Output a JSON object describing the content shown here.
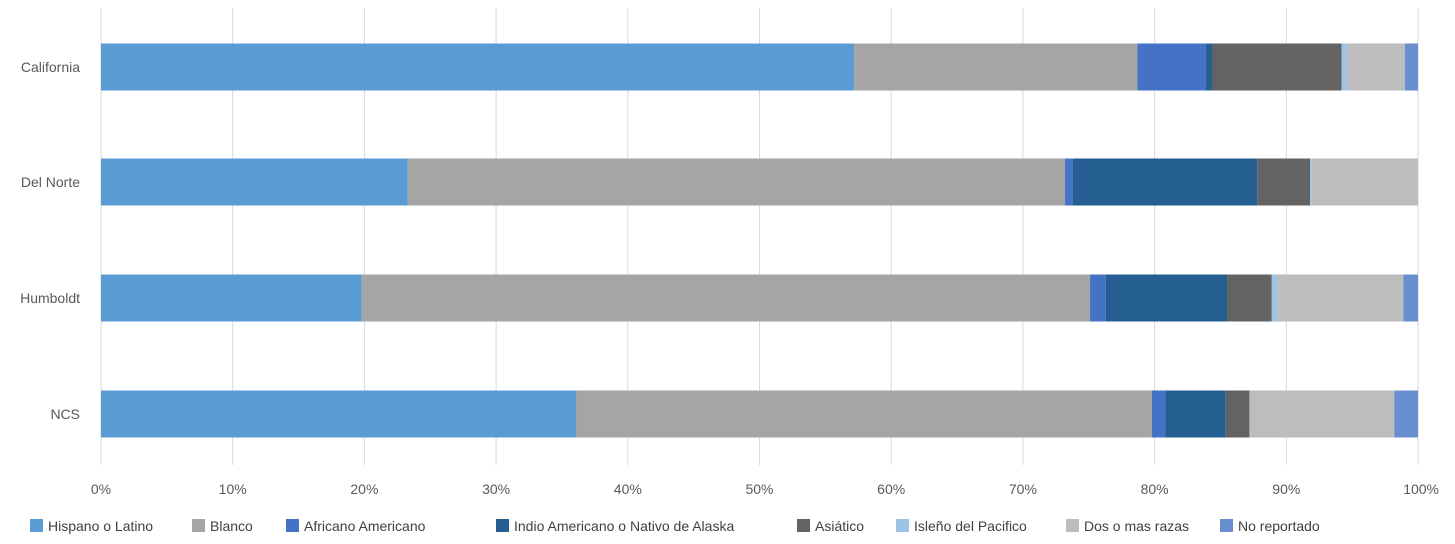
{
  "chart_data": {
    "type": "bar",
    "orientation": "horizontal",
    "stacked": "percent",
    "title": "",
    "xlabel": "",
    "ylabel": "",
    "categories": [
      "California",
      "Del Norte",
      "Humboldt",
      "NCS"
    ],
    "xlim": [
      0,
      100
    ],
    "x_ticks": [
      "0%",
      "10%",
      "20%",
      "30%",
      "40%",
      "50%",
      "60%",
      "70%",
      "80%",
      "90%",
      "100%"
    ],
    "grid": "vertical",
    "legend_position": "bottom",
    "series": [
      {
        "name": "Hispano o Latino",
        "color": "#5B9BD5",
        "values": [
          57.2,
          23.3,
          19.8,
          36.1
        ]
      },
      {
        "name": "Blanco",
        "color": "#A5A5A5",
        "values": [
          21.5,
          49.9,
          55.3,
          43.7
        ]
      },
      {
        "name": "Africano Americano",
        "color": "#4472C4",
        "values": [
          5.2,
          0.6,
          1.2,
          1.0
        ]
      },
      {
        "name": "Indio Americano o Nativo de Alaska",
        "color": "#255E91",
        "values": [
          0.5,
          14.0,
          9.2,
          4.6
        ]
      },
      {
        "name": "Asiático",
        "color": "#636363",
        "values": [
          9.8,
          4.0,
          3.4,
          1.8
        ]
      },
      {
        "name": "Isleño del Pacifico",
        "color": "#9DC3E6",
        "values": [
          0.4,
          0.1,
          0.4,
          0.0
        ]
      },
      {
        "name": "Dos o mas razas",
        "color": "#BDBDBD",
        "values": [
          4.4,
          8.1,
          9.6,
          11.0
        ]
      },
      {
        "name": "No reportado",
        "color": "#698ED0",
        "values": [
          1.0,
          0.0,
          1.1,
          1.8
        ]
      }
    ]
  }
}
